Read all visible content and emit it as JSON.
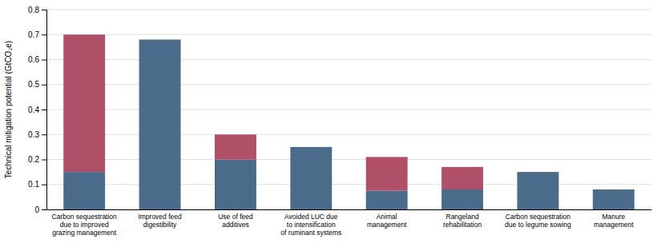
{
  "chart_data": {
    "type": "bar",
    "stacked": true,
    "grid": true,
    "categories": [
      "Carbon sequestration\ndue to improved\ngrazing management",
      "Improved feed\ndigestibility",
      "Use of feed\nadditives",
      "Avoided LUC due\nto intensification\nof ruminant systems",
      "Animal\nmanagement",
      "Rangeland\nrehabilitation",
      "Carbon sequestration\ndue to legume sowing",
      "Manure\nmanagement"
    ],
    "series": [
      {
        "color": "#4a6b8a",
        "values": [
          0.15,
          0.68,
          0.2,
          0.25,
          0.075,
          0.08,
          0.15,
          0.08
        ]
      },
      {
        "color": "#b05068",
        "values": [
          0.55,
          0.0,
          0.1,
          0.0,
          0.135,
          0.09,
          0.0,
          0.0
        ]
      }
    ],
    "ylabel": "Technical mitigation potential (GtCO₂e)",
    "ylim": [
      0,
      0.8
    ],
    "yticks": [
      0,
      0.1,
      0.2,
      0.3,
      0.4,
      0.5,
      0.6,
      0.7,
      0.8
    ]
  }
}
